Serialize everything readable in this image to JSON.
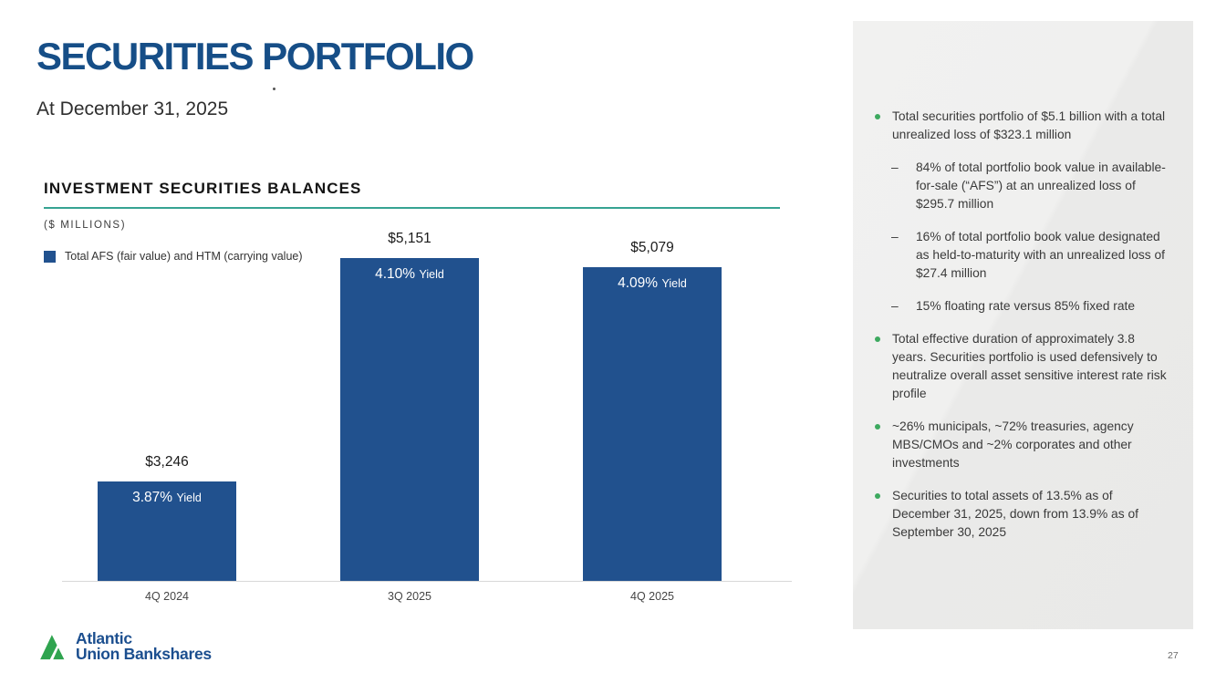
{
  "slide": {
    "title": "SECURITIES PORTFOLIO",
    "subtitle": "At December 31, 2025",
    "page_number": "27"
  },
  "chart": {
    "header": "INVESTMENT SECURITIES BALANCES",
    "units_label": "($ MILLIONS)",
    "legend_label": "Total AFS (fair value) and HTM (carrying value)"
  },
  "chart_data": {
    "type": "bar",
    "title": "INVESTMENT SECURITIES BALANCES",
    "ylabel": "($ MILLIONS)",
    "categories": [
      "4Q 2024",
      "3Q 2025",
      "4Q 2025"
    ],
    "values": [
      3246,
      5151,
      5079
    ],
    "value_labels": [
      "$3,246",
      "$5,151",
      "$5,079"
    ],
    "yield_labels": [
      "3.87%",
      "4.10%",
      "4.09%"
    ],
    "yield_suffix": "Yield",
    "legend": [
      "Total AFS (fair value) and HTM (carrying value)"
    ],
    "ylim": [
      2400,
      5200
    ],
    "grid": false,
    "bar_color": "#21518E"
  },
  "sidebar": {
    "sub_marker": "–",
    "bullets": [
      {
        "level": 1,
        "text": "Total securities portfolio of $5.1 billion with a total unrealized loss of $323.1 million"
      },
      {
        "level": 2,
        "text": "84% of total portfolio book value in available-for-sale (“AFS”) at an unrealized loss of $295.7 million"
      },
      {
        "level": 2,
        "text": "16% of total portfolio book value designated as held-to-maturity with an unrealized loss of $27.4 million"
      },
      {
        "level": 2,
        "text": "15% floating rate versus 85% fixed rate"
      },
      {
        "level": 1,
        "text": "Total effective duration of approximately 3.8 years. Securities portfolio is used defensively to neutralize overall asset sensitive interest rate risk profile"
      },
      {
        "level": 1,
        "text": "~26% municipals, ~72% treasuries, agency MBS/CMOs and ~2% corporates and other investments"
      },
      {
        "level": 1,
        "text": "Securities to total assets of 13.5% as of December 31, 2025, down from 13.9% as of September 30, 2025"
      }
    ]
  },
  "footer": {
    "logo_line1": "Atlantic",
    "logo_line2": "Union Bankshares"
  },
  "colors": {
    "brand_blue": "#164E87",
    "bar_blue": "#21518E",
    "teal_rule": "#36A392",
    "bullet_green": "#3DA95F",
    "logo_green": "#2FA44F",
    "sidebar_bg": "#EFEFEF"
  }
}
